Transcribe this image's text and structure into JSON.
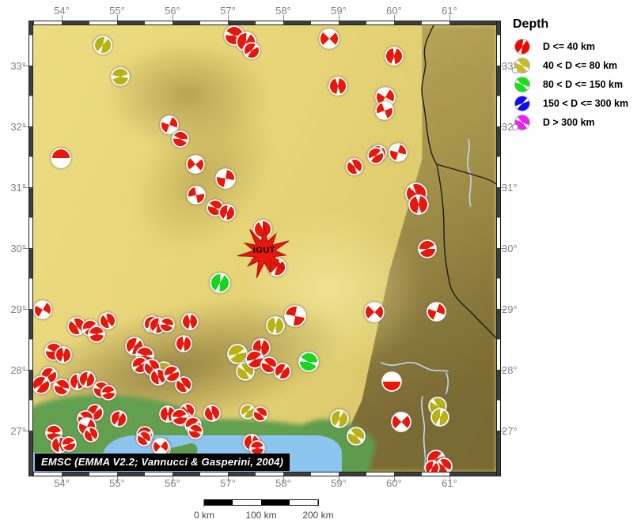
{
  "legend": {
    "title": "Depth",
    "items": [
      {
        "label": "D <= 40 km",
        "color": "#f00500",
        "rot": 215,
        "dot": false
      },
      {
        "label": "40 < D <= 80 km",
        "color": "#c6ba25",
        "rot": 140,
        "dot": true
      },
      {
        "label": "80 < D <= 150 km",
        "color": "#17e117",
        "rot": 315,
        "dot": false
      },
      {
        "label": "150 < D <= 300 km",
        "color": "#0d0df0",
        "rot": 250,
        "dot": false
      },
      {
        "label": "D > 300 km",
        "color": "#ef1fef",
        "rot": 140,
        "dot": true
      }
    ]
  },
  "axes": {
    "lon_labels": [
      "54°",
      "55°",
      "56°",
      "57°",
      "58°",
      "59°",
      "60°",
      "61°"
    ],
    "lat_labels": [
      "33°",
      "32°",
      "31°",
      "30°",
      "29°",
      "28°",
      "27°"
    ]
  },
  "attribution": {
    "text": "EMSC (EMMA V2.2; Vannucci & Gasperini, 2004)"
  },
  "scalebar": {
    "labels": [
      "0 km",
      "100 km",
      "200 km"
    ]
  },
  "station": {
    "label": "IGUT"
  },
  "colors": {
    "red": "#e8170b",
    "olive": "#b9b214",
    "green": "#12d81e",
    "sea": "#8cc6ee",
    "lowland": "#63a04e",
    "star": "#e81510",
    "border": "#1c1c1c",
    "river": "#b9ddf2"
  },
  "map": {
    "border_paths": [
      "M506,0 C500,12 492,26 495,42 C498,58 488,72 492,92 C496,112 497,132 500,148 C503,163 506,170 510,176",
      "M510,176 C527,181 546,186 562,191 C573,194 580,197 585,201",
      "M510,176 C514,196 519,228 519,258 C519,288 522,306 526,326 C530,344 542,352 554,364 C566,377 578,388 585,396"
    ],
    "river_paths": [
      "M550,145 C554,157 545,171 551,185 C557,199 548,215 553,229",
      "M440,427 C452,433 462,429 472,427 C484,425 492,433 502,436 C510,438 518,436 524,438",
      "M492,470 C488,486 496,500 494,516 C492,532 498,546 494,560",
      "M522,440 C526,450 524,458 522,466"
    ]
  },
  "beachballs": [
    [
      130,
      57,
      20,
      "olive",
      40,
      "l"
    ],
    [
      152,
      97,
      20,
      "olive",
      100,
      "l"
    ],
    [
      296,
      45,
      22,
      "red",
      120,
      "l"
    ],
    [
      311,
      53,
      22,
      "red",
      210,
      "l"
    ],
    [
      318,
      64,
      18,
      "red",
      60,
      "l"
    ],
    [
      416,
      49,
      22,
      "red",
      45,
      "q"
    ],
    [
      427,
      109,
      20,
      "red",
      10,
      "l"
    ],
    [
      498,
      71,
      20,
      "red",
      200,
      "l"
    ],
    [
      487,
      123,
      22,
      "red",
      30,
      "q"
    ],
    [
      486,
      140,
      20,
      "red",
      70,
      "q"
    ],
    [
      478,
      194,
      18,
      "red",
      220,
      "l"
    ],
    [
      503,
      193,
      20,
      "red",
      15,
      "q"
    ],
    [
      77,
      200,
      22,
      "red",
      270,
      "h"
    ],
    [
      214,
      158,
      20,
      "red",
      20,
      "q"
    ],
    [
      228,
      176,
      18,
      "red",
      300,
      "l"
    ],
    [
      247,
      208,
      20,
      "red",
      50,
      "q"
    ],
    [
      285,
      226,
      22,
      "red",
      10,
      "q"
    ],
    [
      248,
      247,
      20,
      "red",
      80,
      "q"
    ],
    [
      272,
      263,
      18,
      "red",
      130,
      "l"
    ],
    [
      287,
      269,
      18,
      "red",
      210,
      "l"
    ],
    [
      448,
      211,
      18,
      "red",
      340,
      "l"
    ],
    [
      475,
      197,
      18,
      "red",
      250,
      "l"
    ],
    [
      526,
      245,
      24,
      "red",
      160,
      "l"
    ],
    [
      529,
      259,
      22,
      "red",
      190,
      "l"
    ],
    [
      540,
      315,
      20,
      "red",
      90,
      "l"
    ],
    [
      332,
      290,
      20,
      "red",
      0,
      "l"
    ],
    [
      350,
      338,
      20,
      "red",
      45,
      "l"
    ],
    [
      278,
      358,
      22,
      "green",
      30,
      "l"
    ],
    [
      373,
      400,
      24,
      "red",
      100,
      "q"
    ],
    [
      348,
      412,
      20,
      "olive",
      200,
      "l"
    ],
    [
      390,
      458,
      22,
      "green",
      120,
      "l"
    ],
    [
      300,
      448,
      22,
      "olive",
      80,
      "l"
    ],
    [
      310,
      470,
      20,
      "olive",
      150,
      "l"
    ],
    [
      330,
      440,
      20,
      "red",
      20,
      "l"
    ],
    [
      322,
      455,
      20,
      "red",
      260,
      "l"
    ],
    [
      340,
      462,
      18,
      "red",
      315,
      "l"
    ],
    [
      357,
      470,
      18,
      "red",
      50,
      "l"
    ],
    [
      473,
      395,
      22,
      "red",
      45,
      "q"
    ],
    [
      551,
      394,
      21,
      "red",
      20,
      "q"
    ],
    [
      495,
      483,
      22,
      "red",
      90,
      "h"
    ],
    [
      507,
      534,
      22,
      "red",
      45,
      "q"
    ],
    [
      553,
      514,
      20,
      "olive",
      330,
      "l"
    ],
    [
      556,
      528,
      20,
      "olive",
      30,
      "l"
    ],
    [
      429,
      530,
      20,
      "olive",
      210,
      "l"
    ],
    [
      450,
      552,
      20,
      "olive",
      140,
      "l"
    ],
    [
      551,
      581,
      20,
      "red",
      70,
      "l"
    ],
    [
      561,
      590,
      18,
      "red",
      150,
      "l"
    ],
    [
      546,
      592,
      16,
      "red",
      220,
      "l"
    ],
    [
      54,
      392,
      20,
      "red",
      30,
      "q"
    ],
    [
      68,
      445,
      20,
      "red",
      120,
      "l"
    ],
    [
      80,
      449,
      18,
      "red",
      200,
      "l"
    ],
    [
      97,
      413,
      20,
      "red",
      160,
      "l"
    ],
    [
      114,
      415,
      18,
      "red",
      80,
      "l"
    ],
    [
      122,
      423,
      18,
      "red",
      280,
      "l"
    ],
    [
      136,
      406,
      18,
      "red",
      350,
      "l"
    ],
    [
      170,
      438,
      20,
      "red",
      45,
      "l"
    ],
    [
      183,
      450,
      20,
      "red",
      110,
      "l"
    ],
    [
      192,
      410,
      18,
      "red",
      230,
      "l"
    ],
    [
      232,
      435,
      18,
      "red",
      20,
      "l"
    ],
    [
      207,
      468,
      18,
      "olive",
      300,
      "l"
    ],
    [
      177,
      462,
      18,
      "red",
      75,
      "l"
    ],
    [
      192,
      465,
      18,
      "red",
      155,
      "l"
    ],
    [
      62,
      475,
      18,
      "red",
      240,
      "l"
    ],
    [
      52,
      487,
      20,
      "red",
      60,
      "l"
    ],
    [
      78,
      490,
      18,
      "red",
      130,
      "l"
    ],
    [
      98,
      483,
      18,
      "red",
      200,
      "l"
    ],
    [
      110,
      480,
      18,
      "red",
      30,
      "l"
    ],
    [
      128,
      493,
      18,
      "red",
      310,
      "l"
    ],
    [
      137,
      497,
      16,
      "red",
      95,
      "l"
    ],
    [
      200,
      477,
      18,
      "red",
      175,
      "l"
    ],
    [
      217,
      473,
      18,
      "red",
      255,
      "l"
    ],
    [
      232,
      487,
      18,
      "red",
      335,
      "l"
    ],
    [
      120,
      522,
      18,
      "red",
      55,
      "l"
    ],
    [
      108,
      530,
      18,
      "red",
      135,
      "l"
    ],
    [
      150,
      530,
      18,
      "red",
      215,
      "l"
    ],
    [
      110,
      540,
      20,
      "red",
      25,
      "q"
    ],
    [
      68,
      548,
      18,
      "red",
      105,
      "l"
    ],
    [
      75,
      563,
      18,
      "red",
      185,
      "l"
    ],
    [
      87,
      562,
      16,
      "red",
      265,
      "l"
    ],
    [
      115,
      550,
      16,
      "red",
      345,
      "l"
    ],
    [
      183,
      550,
      18,
      "red",
      85,
      "l"
    ],
    [
      205,
      567,
      18,
      "red",
      50,
      "q"
    ],
    [
      237,
      520,
      16,
      "red",
      165,
      "l"
    ],
    [
      230,
      530,
      16,
      "red",
      245,
      "l"
    ],
    [
      212,
      524,
      18,
      "red",
      15,
      "l"
    ],
    [
      227,
      528,
      18,
      "red",
      95,
      "l"
    ],
    [
      268,
      523,
      18,
      "red",
      175,
      "l"
    ],
    [
      244,
      538,
      18,
      "red",
      255,
      "l"
    ],
    [
      182,
      555,
      16,
      "red",
      325,
      "l"
    ],
    [
      203,
      565,
      18,
      "red",
      40,
      "q"
    ],
    [
      247,
      546,
      16,
      "red",
      120,
      "l"
    ],
    [
      318,
      560,
      18,
      "red",
      200,
      "l"
    ],
    [
      325,
      567,
      16,
      "red",
      280,
      "l"
    ],
    [
      313,
      521,
      16,
      "olive",
      60,
      "l"
    ],
    [
      329,
      524,
      16,
      "red",
      140,
      "l"
    ],
    [
      199,
      412,
      18,
      "red",
      220,
      "l"
    ],
    [
      211,
      411,
      16,
      "red",
      300,
      "l"
    ],
    [
      240,
      407,
      18,
      "red",
      10,
      "l"
    ]
  ]
}
